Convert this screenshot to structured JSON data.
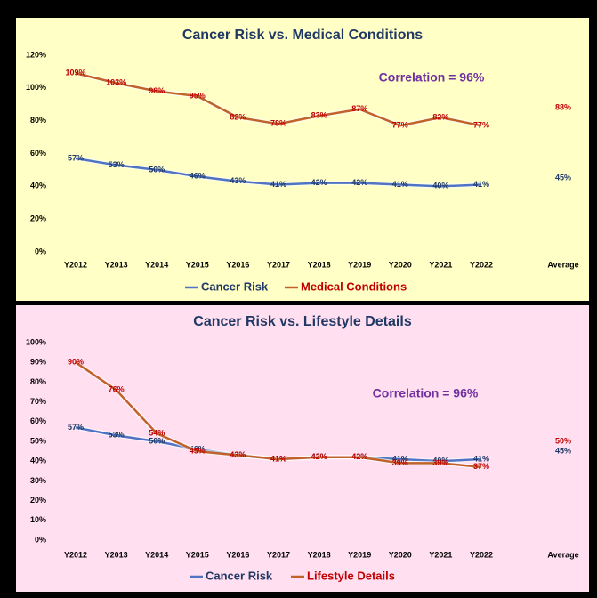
{
  "chart_data": [
    {
      "type": "line",
      "title": "Cancer Risk vs. Medical Conditions",
      "annotation": "Correlation = 96%",
      "background": "#ffffc6",
      "categories": [
        "Y2012",
        "Y2013",
        "Y2014",
        "Y2015",
        "Y2016",
        "Y2017",
        "Y2018",
        "Y2019",
        "Y2020",
        "Y2021",
        "Y2022"
      ],
      "average_category": "Average",
      "ylim": [
        0,
        120
      ],
      "yticks": [
        {
          "value": 0,
          "label": "0%"
        },
        {
          "value": 20,
          "label": "20%"
        },
        {
          "value": 40,
          "label": "40%"
        },
        {
          "value": 60,
          "label": "60%"
        },
        {
          "value": 80,
          "label": "80%"
        },
        {
          "value": 100,
          "label": "100%"
        },
        {
          "value": 120,
          "label": "120%"
        }
      ],
      "grid": false,
      "legend": "bottom",
      "series": [
        {
          "name": "Cancer Risk",
          "color": "#4f74c4",
          "label_color": "#1f3864",
          "values": [
            57,
            53,
            50,
            46,
            43,
            41,
            42,
            42,
            41,
            40,
            41
          ],
          "value_labels": [
            "57%",
            "53%",
            "50%",
            "46%",
            "43%",
            "41%",
            "42%",
            "42%",
            "41%",
            "40%",
            "41%"
          ],
          "average": 45,
          "average_label": "45%"
        },
        {
          "name": "Medical Conditions",
          "color": "#c0622a",
          "label_color": "#c00000",
          "values": [
            109,
            103,
            98,
            95,
            82,
            78,
            83,
            87,
            77,
            82,
            77
          ],
          "value_labels": [
            "109%",
            "103%",
            "98%",
            "95%",
            "82%",
            "78%",
            "83%",
            "87%",
            "77%",
            "82%",
            "77%"
          ],
          "average": 88,
          "average_label": "88%"
        }
      ]
    },
    {
      "type": "line",
      "title": "Cancer Risk vs. Lifestyle Details",
      "annotation": "Correlation = 96%",
      "background": "#ffdff0",
      "categories": [
        "Y2012",
        "Y2013",
        "Y2014",
        "Y2015",
        "Y2016",
        "Y2017",
        "Y2018",
        "Y2019",
        "Y2020",
        "Y2021",
        "Y2022"
      ],
      "average_category": "Average",
      "ylim": [
        0,
        100
      ],
      "yticks": [
        {
          "value": 0,
          "label": "0%"
        },
        {
          "value": 10,
          "label": "10%"
        },
        {
          "value": 20,
          "label": "20%"
        },
        {
          "value": 30,
          "label": "30%"
        },
        {
          "value": 40,
          "label": "40%"
        },
        {
          "value": 50,
          "label": "50%"
        },
        {
          "value": 60,
          "label": "60%"
        },
        {
          "value": 70,
          "label": "70%"
        },
        {
          "value": 80,
          "label": "80%"
        },
        {
          "value": 90,
          "label": "90%"
        },
        {
          "value": 100,
          "label": "100%"
        }
      ],
      "grid": false,
      "legend": "bottom",
      "series": [
        {
          "name": "Cancer Risk",
          "color": "#4f74c4",
          "label_color": "#1f3864",
          "values": [
            57,
            53,
            50,
            46,
            43,
            41,
            42,
            42,
            41,
            40,
            41
          ],
          "value_labels": [
            "57%",
            "53%",
            "50%",
            "46%",
            "43%",
            "41%",
            "42%",
            "42%",
            "41%",
            "40%",
            "41%"
          ],
          "average": 45,
          "average_label": "45%"
        },
        {
          "name": "Lifestyle Details",
          "color": "#c0622a",
          "label_color": "#c00000",
          "values": [
            90,
            76,
            54,
            45,
            43,
            41,
            42,
            42,
            39,
            39,
            37
          ],
          "value_labels": [
            "90%",
            "76%",
            "54%",
            "45%",
            "43%",
            "41%",
            "42%",
            "42%",
            "39%",
            "39%",
            "37%"
          ],
          "average": 50,
          "average_label": "50%"
        }
      ]
    }
  ]
}
